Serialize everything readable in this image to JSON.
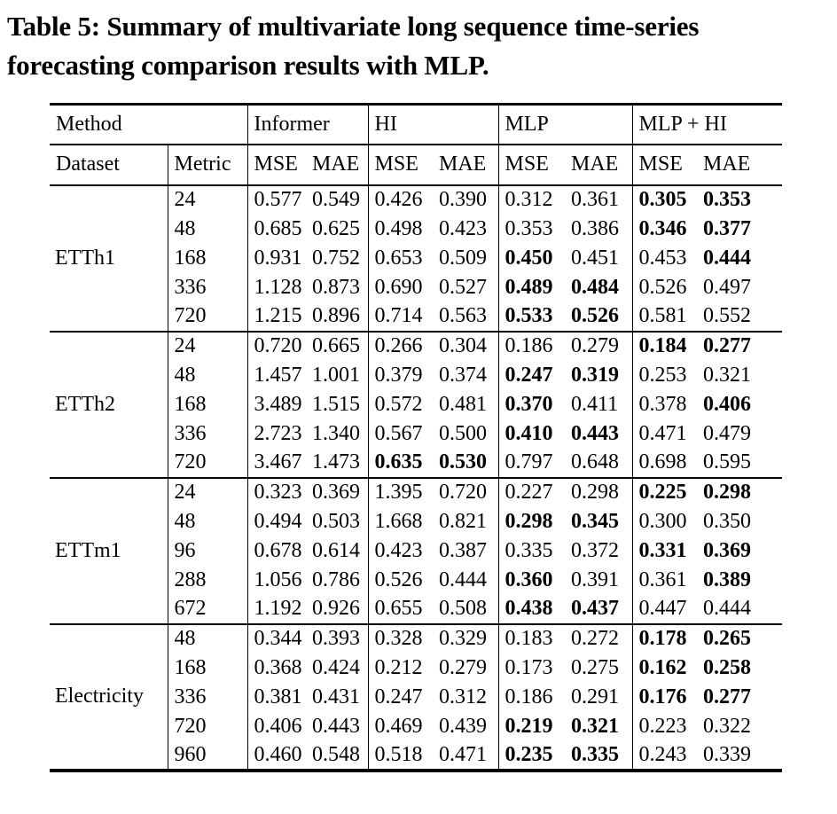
{
  "page": {
    "background": "#ffffff",
    "text_color": "#000000",
    "rule_color": "#000000"
  },
  "caption": {
    "lines": [
      "Table 5: Summary of multivariate long sequence time-series",
      "forecasting comparison results with MLP."
    ]
  },
  "table": {
    "method_label": "Method",
    "dataset_label": "Dataset",
    "metric_label": "Metric",
    "methods": [
      "Informer",
      "HI",
      "MLP",
      "MLP + HI"
    ],
    "submetrics": [
      "MSE",
      "MAE"
    ],
    "groups": [
      {
        "dataset": "ETTh1",
        "rows": [
          {
            "metric": "24",
            "values": [
              "0.577",
              "0.549",
              "0.426",
              "0.390",
              "0.312",
              "0.361",
              "0.305",
              "0.353"
            ],
            "bold": [
              6,
              7
            ]
          },
          {
            "metric": "48",
            "values": [
              "0.685",
              "0.625",
              "0.498",
              "0.423",
              "0.353",
              "0.386",
              "0.346",
              "0.377"
            ],
            "bold": [
              6,
              7
            ]
          },
          {
            "metric": "168",
            "values": [
              "0.931",
              "0.752",
              "0.653",
              "0.509",
              "0.450",
              "0.451",
              "0.453",
              "0.444"
            ],
            "bold": [
              4,
              7
            ]
          },
          {
            "metric": "336",
            "values": [
              "1.128",
              "0.873",
              "0.690",
              "0.527",
              "0.489",
              "0.484",
              "0.526",
              "0.497"
            ],
            "bold": [
              4,
              5
            ]
          },
          {
            "metric": "720",
            "values": [
              "1.215",
              "0.896",
              "0.714",
              "0.563",
              "0.533",
              "0.526",
              "0.581",
              "0.552"
            ],
            "bold": [
              4,
              5
            ]
          }
        ]
      },
      {
        "dataset": "ETTh2",
        "rows": [
          {
            "metric": "24",
            "values": [
              "0.720",
              "0.665",
              "0.266",
              "0.304",
              "0.186",
              "0.279",
              "0.184",
              "0.277"
            ],
            "bold": [
              6,
              7
            ]
          },
          {
            "metric": "48",
            "values": [
              "1.457",
              "1.001",
              "0.379",
              "0.374",
              "0.247",
              "0.319",
              "0.253",
              "0.321"
            ],
            "bold": [
              4,
              5
            ]
          },
          {
            "metric": "168",
            "values": [
              "3.489",
              "1.515",
              "0.572",
              "0.481",
              "0.370",
              "0.411",
              "0.378",
              "0.406"
            ],
            "bold": [
              4,
              7
            ]
          },
          {
            "metric": "336",
            "values": [
              "2.723",
              "1.340",
              "0.567",
              "0.500",
              "0.410",
              "0.443",
              "0.471",
              "0.479"
            ],
            "bold": [
              4,
              5
            ]
          },
          {
            "metric": "720",
            "values": [
              "3.467",
              "1.473",
              "0.635",
              "0.530",
              "0.797",
              "0.648",
              "0.698",
              "0.595"
            ],
            "bold": [
              2,
              3
            ]
          }
        ]
      },
      {
        "dataset": "ETTm1",
        "rows": [
          {
            "metric": "24",
            "values": [
              "0.323",
              "0.369",
              "1.395",
              "0.720",
              "0.227",
              "0.298",
              "0.225",
              "0.298"
            ],
            "bold": [
              6,
              7
            ]
          },
          {
            "metric": "48",
            "values": [
              "0.494",
              "0.503",
              "1.668",
              "0.821",
              "0.298",
              "0.345",
              "0.300",
              "0.350"
            ],
            "bold": [
              4,
              5
            ]
          },
          {
            "metric": "96",
            "values": [
              "0.678",
              "0.614",
              "0.423",
              "0.387",
              "0.335",
              "0.372",
              "0.331",
              "0.369"
            ],
            "bold": [
              6,
              7
            ]
          },
          {
            "metric": "288",
            "values": [
              "1.056",
              "0.786",
              "0.526",
              "0.444",
              "0.360",
              "0.391",
              "0.361",
              "0.389"
            ],
            "bold": [
              4,
              7
            ]
          },
          {
            "metric": "672",
            "values": [
              "1.192",
              "0.926",
              "0.655",
              "0.508",
              "0.438",
              "0.437",
              "0.447",
              "0.444"
            ],
            "bold": [
              4,
              5
            ]
          }
        ]
      },
      {
        "dataset": "Electricity",
        "rows": [
          {
            "metric": "48",
            "values": [
              "0.344",
              "0.393",
              "0.328",
              "0.329",
              "0.183",
              "0.272",
              "0.178",
              "0.265"
            ],
            "bold": [
              6,
              7
            ]
          },
          {
            "metric": "168",
            "values": [
              "0.368",
              "0.424",
              "0.212",
              "0.279",
              "0.173",
              "0.275",
              "0.162",
              "0.258"
            ],
            "bold": [
              6,
              7
            ]
          },
          {
            "metric": "336",
            "values": [
              "0.381",
              "0.431",
              "0.247",
              "0.312",
              "0.186",
              "0.291",
              "0.176",
              "0.277"
            ],
            "bold": [
              6,
              7
            ]
          },
          {
            "metric": "720",
            "values": [
              "0.406",
              "0.443",
              "0.469",
              "0.439",
              "0.219",
              "0.321",
              "0.223",
              "0.322"
            ],
            "bold": [
              4,
              5
            ]
          },
          {
            "metric": "960",
            "values": [
              "0.460",
              "0.548",
              "0.518",
              "0.471",
              "0.235",
              "0.335",
              "0.243",
              "0.339"
            ],
            "bold": [
              4,
              5
            ]
          }
        ]
      }
    ]
  }
}
